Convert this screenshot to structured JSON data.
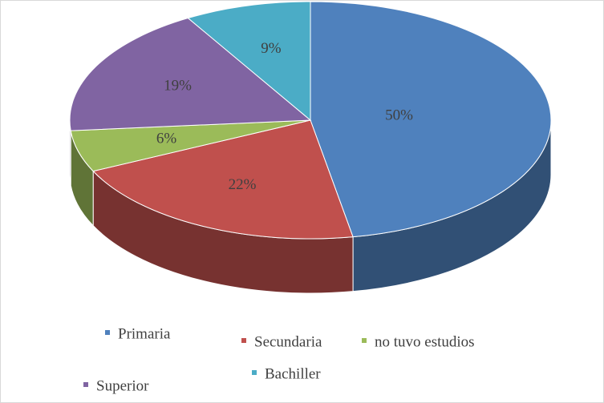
{
  "chart_data": {
    "type": "pie3d",
    "categories": [
      "Primaria",
      "Secundaria",
      "no tuvo estudios",
      "Superior",
      "Bachiller"
    ],
    "values": [
      50,
      22,
      6,
      19,
      9
    ],
    "value_labels": [
      "50%",
      "22%",
      "6%",
      "19%",
      "9%"
    ],
    "colors": [
      "#4f81bd",
      "#c0504d",
      "#9bbb59",
      "#8064a2",
      "#4bacc6"
    ],
    "legend": "bottom"
  }
}
